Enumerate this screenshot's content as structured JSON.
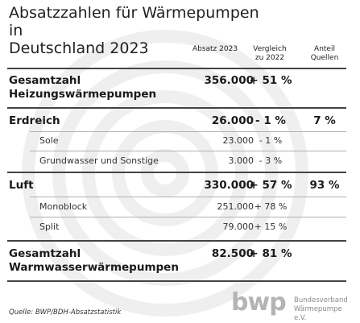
{
  "title_line1": "Absatzzahlen für Wärmepumpen in",
  "title_line2": "Deutschland 2023",
  "columns": {
    "absatz": "Absatz 2023",
    "vergleich_line1": "Vergleich",
    "vergleich_line2": "zu 2022",
    "anteil_line1": "Anteil",
    "anteil_line2": "Quellen"
  },
  "rows": {
    "gesamt_heizung": {
      "label_line1": "Gesamtzahl",
      "label_line2": "Heizungswärmepumpen",
      "absatz": "356.000",
      "vergleich": "+ 51 %"
    },
    "erdreich": {
      "label": "Erdreich",
      "absatz": "26.000",
      "vergleich": "- 1 %",
      "anteil": "7 %"
    },
    "sole": {
      "label": "Sole",
      "absatz": "23.000",
      "vergleich": "- 1 %"
    },
    "grundwasser": {
      "label": "Grundwasser und Sonstige",
      "absatz": "3.000",
      "vergleich": "- 3 %"
    },
    "luft": {
      "label": "Luft",
      "absatz": "330.000",
      "vergleich": "+ 57 %",
      "anteil": "93 %"
    },
    "monoblock": {
      "label": "Monoblock",
      "absatz": "251.000",
      "vergleich": "+ 78 %"
    },
    "split": {
      "label": "Split",
      "absatz": "79.000",
      "vergleich": "+ 15 %"
    },
    "gesamt_warmwasser": {
      "label_line1": "Gesamtzahl",
      "label_line2": "Warmwasserwärmepumpen",
      "absatz": "82.500",
      "vergleich": "+ 81 %"
    }
  },
  "source": "Quelle: BWP/BDH-Absatzstatistik",
  "logo": {
    "wordmark": "bwp",
    "line1": "Bundesverband",
    "line2": "Wärmepumpe e.V."
  },
  "colors": {
    "text": "#1a1a1a",
    "watermark": "#efefef",
    "logo": "#b4b4b4"
  }
}
